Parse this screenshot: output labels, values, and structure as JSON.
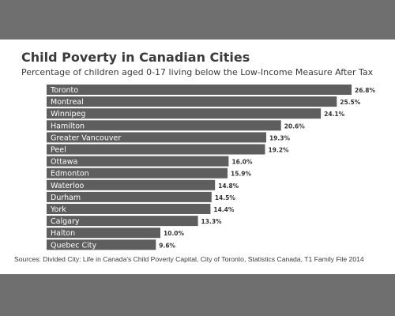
{
  "chart_data": {
    "type": "bar",
    "orientation": "horizontal",
    "title": "Child Poverty in Canadian Cities",
    "subtitle": "Percentage of children aged 0-17 living below the Low-Income Measure After Tax",
    "source": "Sources: Divided City: Life in Canada's Child Poverty Capital, City of Toronto, Statistics Canada, T1 Family File 2014",
    "categories": [
      "Toronto",
      "Montreal",
      "Winnipeg",
      "Hamilton",
      "Greater Vancouver",
      "Peel",
      "Ottawa",
      "Edmonton",
      "Waterloo",
      "Durham",
      "York",
      "Calgary",
      "Halton",
      "Quebec City"
    ],
    "values": [
      26.8,
      25.5,
      24.1,
      20.6,
      19.3,
      19.2,
      16.0,
      15.9,
      14.8,
      14.5,
      14.4,
      13.3,
      10.0,
      9.6
    ],
    "value_labels": [
      "26.8%",
      "25.5%",
      "24.1%",
      "20.6%",
      "19.3%",
      "19.2%",
      "16.0%",
      "15.9%",
      "14.8%",
      "14.5%",
      "14.4%",
      "13.3%",
      "10.0%",
      "9.6%"
    ],
    "unit": "%",
    "xlim": [
      0,
      26.8
    ],
    "bar_color": "#5e5e5e",
    "label_color": "#ffffff",
    "value_color": "#333333",
    "grid": false,
    "legend": "none"
  }
}
